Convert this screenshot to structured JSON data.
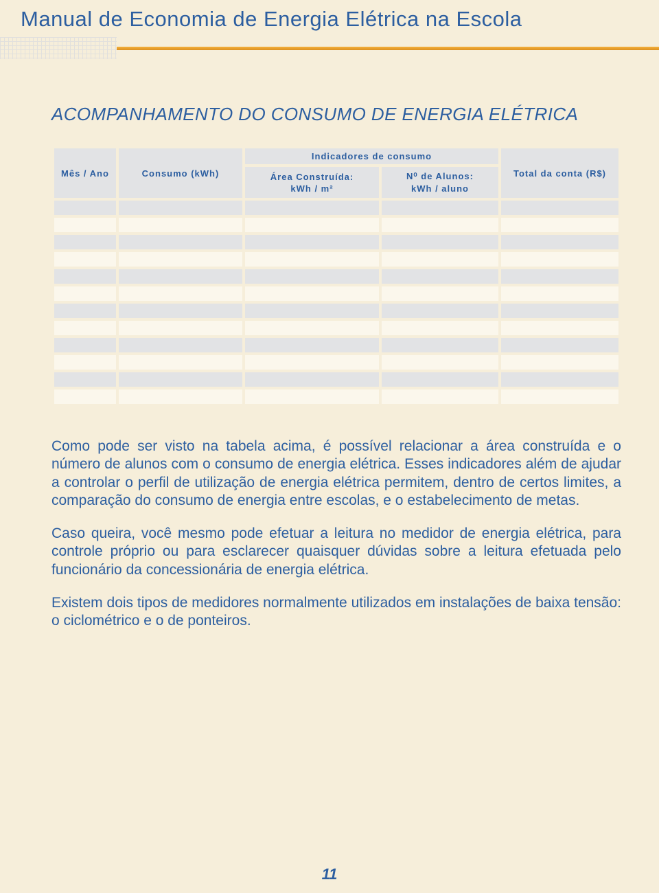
{
  "header": {
    "title": "Manual de Economia de Energia Elétrica na Escola"
  },
  "section": {
    "title": "ACOMPANHAMENTO DO CONSUMO DE ENERGIA ELÉTRICA"
  },
  "table": {
    "head": {
      "mes": "Mês / Ano",
      "consumo": "Consumo (kWh)",
      "indicadores": "Indicadores de consumo",
      "area_l1": "Área Construída:",
      "area_l2": "kWh / m²",
      "alunos_l1": "N⁰ de Alunos:",
      "alunos_l2": "kWh / aluno",
      "total": "Total da conta (R$)"
    },
    "row_count": 12,
    "colors": {
      "header_bg": "#e2e3e5",
      "row_odd": "#e2e3e5",
      "row_even": "#fbf7ec",
      "text": "#2c5ea0"
    }
  },
  "paragraphs": {
    "p1": "Como pode ser visto na tabela acima, é possível relacionar a área construída e o número de alunos com o consumo de energia elétrica. Esses indicadores além de ajudar a controlar o perfil de utilização de energia elétrica permitem, dentro de certos limites, a comparação do consumo de energia entre escolas, e o estabelecimento de metas.",
    "p2": "Caso queira, você mesmo pode efetuar a leitura no medidor de energia elétrica, para controle próprio ou para esclarecer quaisquer dúvidas sobre a leitura efetuada pelo funcionário da concessionária de energia elétrica.",
    "p3": "Existem dois tipos de medidores normalmente utilizados em instalações de baixa tensão: o ciclométrico e o de ponteiros."
  },
  "page_number": "11",
  "palette": {
    "page_bg": "#f6eeda",
    "accent_blue": "#2c5ea0",
    "accent_orange": "#dc8f20"
  }
}
